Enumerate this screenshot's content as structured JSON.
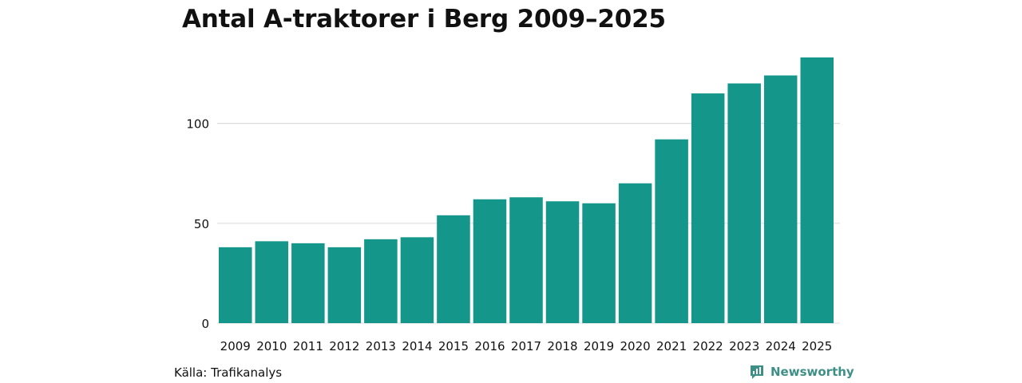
{
  "title": "Antal A-traktorer i Berg 2009–2025",
  "source": "Källa: Trafikanalys",
  "brand": "Newsworthy",
  "colors": {
    "bar": "#14968a",
    "grid": "#dddddd",
    "brand": "#3e8f86"
  },
  "chart_data": {
    "type": "bar",
    "title": "Antal A-traktorer i Berg 2009–2025",
    "xlabel": "",
    "ylabel": "",
    "categories": [
      "2009",
      "2010",
      "2011",
      "2012",
      "2013",
      "2014",
      "2015",
      "2016",
      "2017",
      "2018",
      "2019",
      "2020",
      "2021",
      "2022",
      "2023",
      "2024",
      "2025"
    ],
    "values": [
      38,
      41,
      40,
      38,
      42,
      43,
      54,
      62,
      63,
      61,
      60,
      70,
      92,
      115,
      120,
      124,
      133
    ],
    "ylim": [
      0,
      133
    ],
    "yticks": [
      0,
      50,
      100
    ],
    "grid": true
  }
}
